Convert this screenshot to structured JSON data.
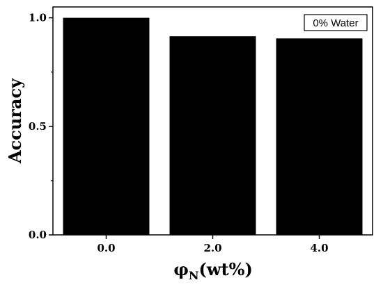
{
  "chart_data": {
    "type": "bar",
    "categories": [
      "0.0",
      "2.0",
      "4.0"
    ],
    "values": [
      1.0,
      0.915,
      0.905
    ],
    "bar_color": "#000000",
    "xlabel": {
      "symbol": "φ",
      "subscript": "N",
      "suffix": "(wt%)"
    },
    "ylabel": "Accuracy",
    "ylim": [
      0.0,
      1.05
    ],
    "yticks": [
      0.0,
      0.5,
      1.0
    ],
    "ytick_labels": [
      "0.0",
      "0.5",
      "1.0"
    ],
    "legend_box": "0% Water",
    "legend_position": "top-right",
    "grid": false
  }
}
